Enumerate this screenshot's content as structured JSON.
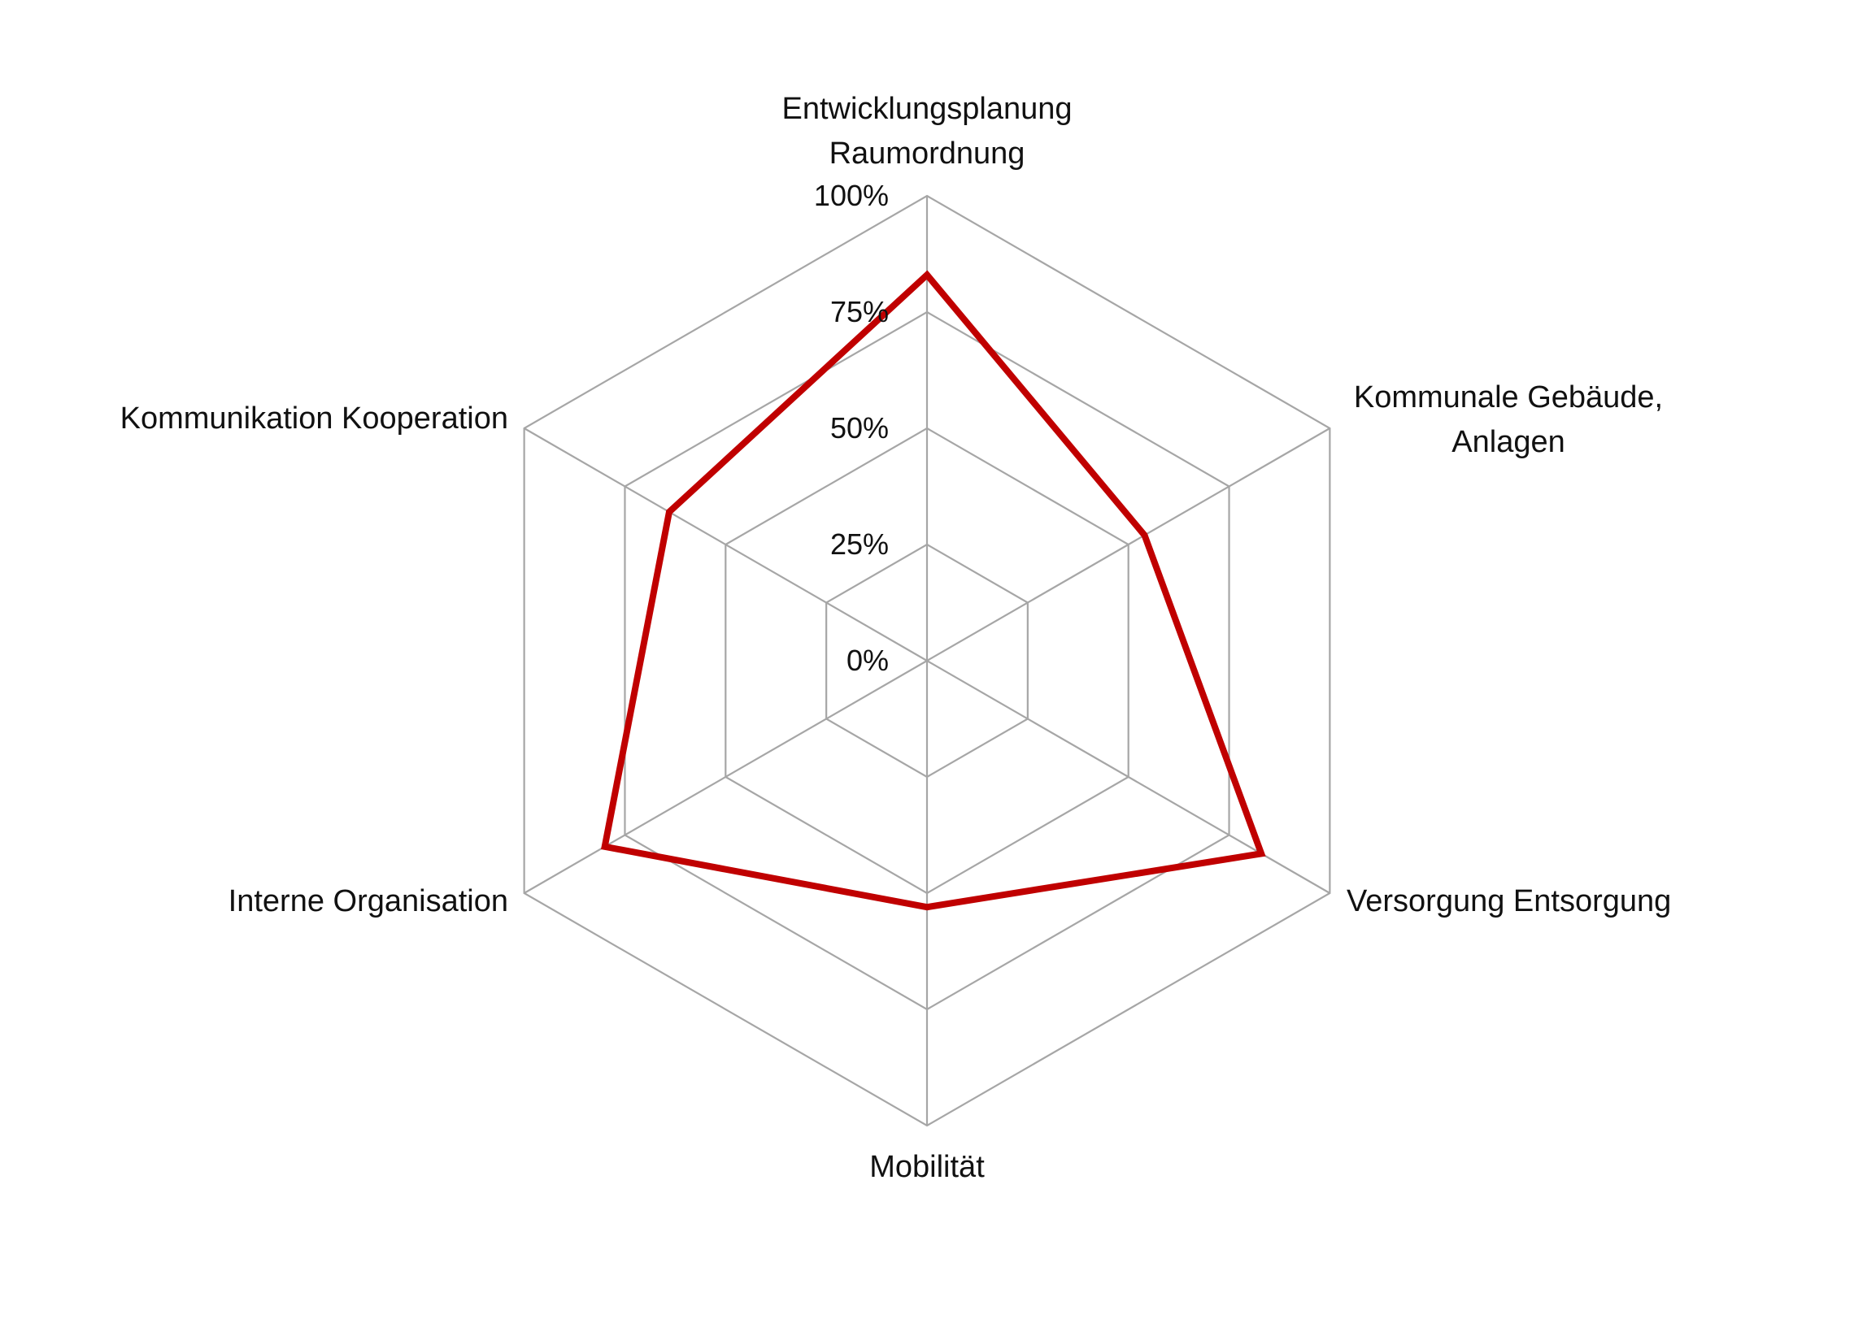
{
  "chart_data": {
    "type": "radar",
    "categories": [
      [
        "Entwicklungsplanung",
        "Raumordnung"
      ],
      [
        "Kommunale Gebäude,",
        "Anlagen"
      ],
      [
        "Versorgung Entsorgung"
      ],
      [
        "Mobilität"
      ],
      [
        "Interne Organisation"
      ],
      [
        "Kommunikation Kooperation"
      ]
    ],
    "series": [
      {
        "values": [
          0.83,
          0.54,
          0.83,
          0.53,
          0.8,
          0.64
        ]
      }
    ],
    "rlim": [
      0,
      1
    ],
    "ticks": [
      0,
      0.25,
      0.5,
      0.75,
      1.0
    ],
    "tick_labels": [
      "0%",
      "25%",
      "50%",
      "75%",
      "100%"
    ],
    "grid": true,
    "legend": false,
    "colors": {
      "series": "#c00000",
      "grid": "#a6a6a6",
      "text": "#111111"
    }
  }
}
